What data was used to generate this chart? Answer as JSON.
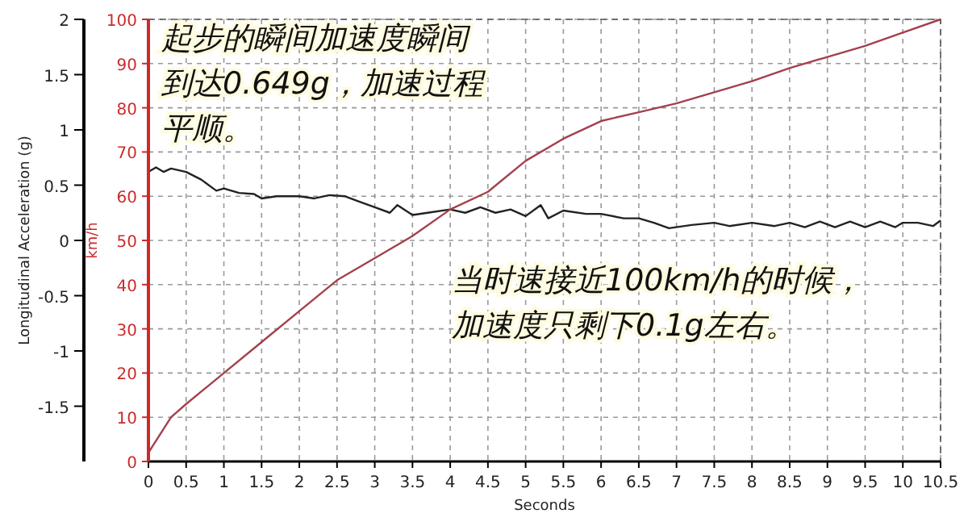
{
  "chart_data": {
    "type": "line",
    "xlabel": "Seconds",
    "ylabel": "Longitudinal Acceleration (g)",
    "y2label": "km/h",
    "xlim": [
      0,
      10.5
    ],
    "xticks": [
      0,
      0.5,
      1,
      1.5,
      2,
      2.5,
      3,
      3.5,
      4,
      4.5,
      5,
      5.5,
      6,
      6.5,
      7,
      7.5,
      8,
      8.5,
      9,
      9.5,
      10,
      10.5
    ],
    "ylim": [
      -2,
      2
    ],
    "yticks": [
      -1.5,
      -1,
      -0.5,
      0,
      0.5,
      1,
      1.5,
      2
    ],
    "y2lim": [
      0,
      100
    ],
    "y2ticks": [
      0,
      10,
      20,
      30,
      40,
      50,
      60,
      70,
      80,
      90,
      100
    ],
    "grid": true,
    "marker": "none",
    "line_style": "solid",
    "series": [
      {
        "color": "#222222",
        "x": [
          0,
          0.1,
          0.2,
          0.3,
          0.5,
          0.7,
          0.9,
          1.0,
          1.2,
          1.4,
          1.5,
          1.7,
          2.0,
          2.2,
          2.4,
          2.6,
          2.8,
          3.0,
          3.2,
          3.3,
          3.5,
          3.7,
          4.0,
          4.2,
          4.4,
          4.6,
          4.8,
          5.0,
          5.2,
          5.3,
          5.5,
          5.8,
          6.0,
          6.3,
          6.5,
          6.7,
          6.9,
          7.2,
          7.5,
          7.7,
          8.0,
          8.3,
          8.5,
          8.7,
          8.9,
          9.1,
          9.3,
          9.5,
          9.7,
          9.9,
          10.0,
          10.2,
          10.4,
          10.5
        ],
        "values": [
          0.62,
          0.66,
          0.62,
          0.65,
          0.62,
          0.55,
          0.45,
          0.47,
          0.43,
          0.42,
          0.38,
          0.4,
          0.4,
          0.38,
          0.41,
          0.4,
          0.35,
          0.3,
          0.25,
          0.32,
          0.23,
          0.25,
          0.28,
          0.25,
          0.3,
          0.25,
          0.28,
          0.22,
          0.32,
          0.2,
          0.27,
          0.24,
          0.24,
          0.2,
          0.2,
          0.16,
          0.11,
          0.14,
          0.16,
          0.13,
          0.16,
          0.13,
          0.16,
          0.12,
          0.17,
          0.12,
          0.17,
          0.12,
          0.17,
          0.12,
          0.16,
          0.16,
          0.13,
          0.18
        ]
      },
      {
        "color": "#a3404c",
        "axis": "y2",
        "x": [
          0,
          0.3,
          0.5,
          1,
          1.5,
          2,
          2.5,
          3,
          3.5,
          4,
          4.5,
          5,
          5.5,
          6,
          6.5,
          7,
          7.5,
          8,
          8.5,
          9,
          9.5,
          10,
          10.5
        ],
        "values": [
          2,
          10,
          13,
          20,
          27,
          34,
          41,
          46,
          51,
          57,
          61,
          68,
          73,
          77,
          79,
          81,
          83.5,
          86,
          89,
          91.5,
          94,
          97,
          100
        ]
      }
    ],
    "annotations": [
      "起步的瞬间加速度瞬间到达0.649g，加速过程平顺。",
      "当时速接近100km/h的时候，加速度只剩下0.1g左右。"
    ]
  }
}
